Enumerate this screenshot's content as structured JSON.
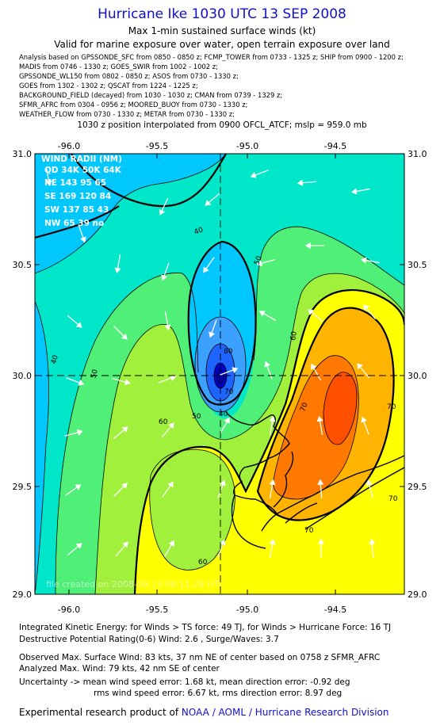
{
  "title": "Hurricane Ike 1030 UTC 13 SEP 2008",
  "subtitle": "Max 1-min sustained surface winds (kt)",
  "subtitle2": "Valid for marine exposure over water, open terrain exposure over land",
  "sources": [
    "Analysis based on  GPSSONDE_SFC from 0850 - 0850 z;  FCMP_TOWER from 0733 - 1325 z;  SHIP from 0900 - 1200 z;",
    "MADIS from 0746 - 1330 z;  GOES_SWIR from 1002 - 1002 z;",
    "GPSSONDE_WL150 from 0802 - 0850 z;  ASOS from 0730 - 1330 z;",
    "GOES from 1302 - 1302 z;  QSCAT from 1224 - 1225 z;",
    "BACKGROUND_FIELD (decayed) from 1030 - 1030 z;  CMAN from 0739 - 1329 z;",
    "SFMR_AFRC from 0304 - 0956 z;  MOORED_BUOY from 0730 - 1330 z;",
    "WEATHER_FLOW from 0730 - 1330 z;  METAR from 0730 - 1330 z;"
  ],
  "interp_note": "1030 z position interpolated from 0900 OFCL_ATCF; mslp = 959.0 mb",
  "map": {
    "lon_labels": [
      "-96.0",
      "-95.5",
      "-95.0",
      "-94.5"
    ],
    "lat_labels": [
      "31.0",
      "30.5",
      "30.0",
      "29.5",
      "29.0"
    ],
    "contour_labels": [
      "40",
      "50",
      "60",
      "70",
      "80"
    ],
    "watermark": "file created on 2008-09-13 08:11:28 UTC",
    "colors": {
      "c30": "#00c8ff",
      "c40": "#00e6c8",
      "c50": "#50f078",
      "c60": "#a0f03c",
      "c70": "#ffff00",
      "c80": "#ffb400",
      "c90": "#ff7800",
      "c100": "#ff5000",
      "eye_outer": "#3ca0ff",
      "eye_mid": "#1e64ff",
      "eye_core": "#0000c8"
    },
    "wind_radii": {
      "header": "WIND RADII (NM)",
      "cols": "QD  34K  50K  64K",
      "rows": [
        "NE  143   95   65",
        "SE  169  120   84",
        "SW  137   85   43",
        "NW   65   39   no"
      ]
    }
  },
  "footer": {
    "ike": "Integrated Kinetic Energy:  for Winds > TS force: 49 TJ,  for Winds > Hurricane Force: 16 TJ",
    "dpr": "Destructive Potential Rating(0-6)   Wind: 2.6 , Surge/Waves: 3.7",
    "obs_max": "Observed Max. Surface Wind: 83 kts, 37 nm NE of center based on 0758 z SFMR_AFRC",
    "analyzed_max": "Analyzed Max. Wind: 79 kts, 42 nm SE of center",
    "uncert1": "Uncertainty -> mean wind speed error: 1.68 kt,   mean direction error:  -0.92 deg",
    "uncert2": "rms wind speed error: 6.67 kt,   rms direction error: 8.97 deg",
    "credit_prefix": "Experimental research product of ",
    "credit_link": "NOAA / AOML / Hurricane Research Division"
  }
}
